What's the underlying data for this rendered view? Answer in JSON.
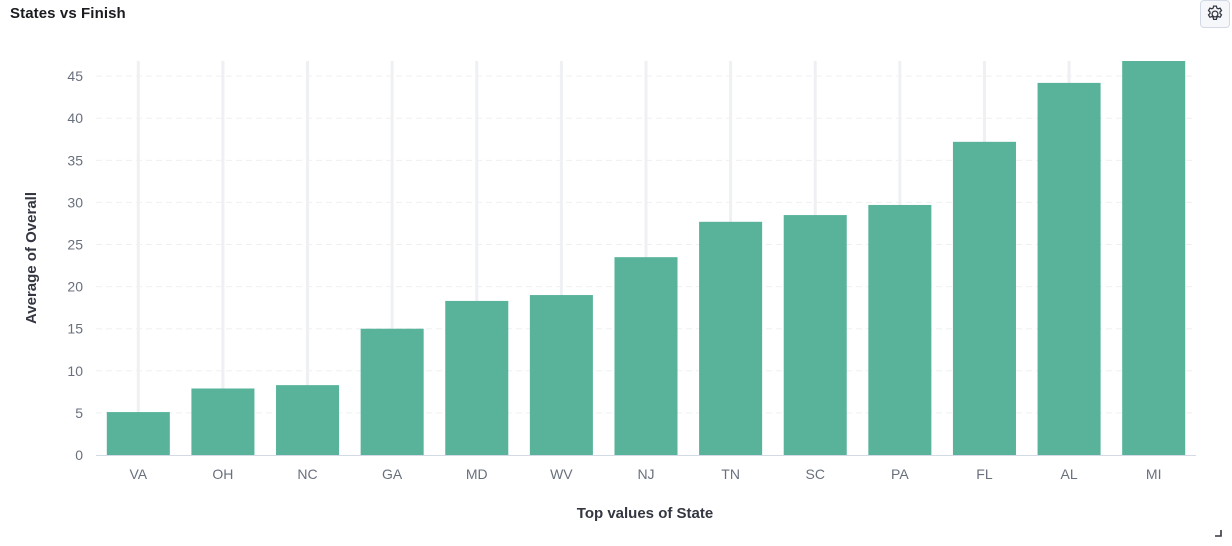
{
  "panel": {
    "title": "States vs Finish"
  },
  "icons": {
    "settings": "gear-icon",
    "resize": "resize-handle-icon"
  },
  "colors": {
    "bar": "#59b39a",
    "grid": "#eef0f3",
    "axis": "#d3dae6",
    "text": "#343741",
    "tick": "#69707d"
  },
  "chart_data": {
    "type": "bar",
    "title": "States vs Finish",
    "xlabel": "Top values of State",
    "ylabel": "Average of Overall",
    "categories": [
      "VA",
      "OH",
      "NC",
      "GA",
      "MD",
      "WV",
      "NJ",
      "TN",
      "SC",
      "PA",
      "FL",
      "AL",
      "MI"
    ],
    "values": [
      5.1,
      7.9,
      8.3,
      15.0,
      18.3,
      19.0,
      23.5,
      27.7,
      28.5,
      29.7,
      37.2,
      44.2,
      46.8
    ],
    "ylim": [
      0,
      46.8
    ],
    "yticks": [
      0,
      5,
      10,
      15,
      20,
      25,
      30,
      35,
      40,
      45
    ],
    "grid": true,
    "legend": "none"
  }
}
